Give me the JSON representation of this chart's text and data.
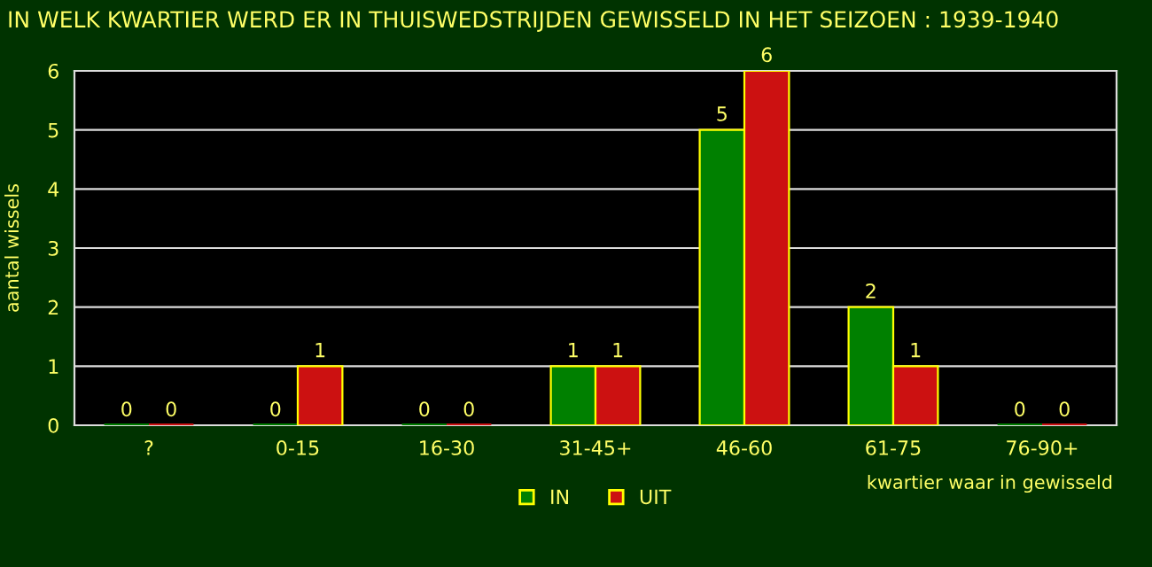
{
  "chart_data": {
    "type": "bar",
    "title": "IN WELK KWARTIER WERD ER IN THUISWEDSTRIJDEN GEWISSELD IN HET SEIZOEN : 1939-1940",
    "xlabel": "kwartier waar in gewisseld",
    "ylabel": "aantal wissels",
    "categories": [
      "?",
      "0-15",
      "16-30",
      "31-45+",
      "46-60",
      "61-75",
      "76-90+"
    ],
    "series": [
      {
        "name": "IN",
        "color": "#008000",
        "values": [
          0,
          0,
          0,
          1,
          5,
          2,
          0
        ]
      },
      {
        "name": "UIT",
        "color": "#cc1111",
        "values": [
          0,
          1,
          0,
          1,
          6,
          1,
          0
        ]
      }
    ],
    "ylim": [
      0,
      6
    ],
    "yticks": [
      0,
      1,
      2,
      3,
      4,
      5,
      6
    ],
    "grid": "y",
    "legend": "bottom",
    "data_labels": true
  }
}
